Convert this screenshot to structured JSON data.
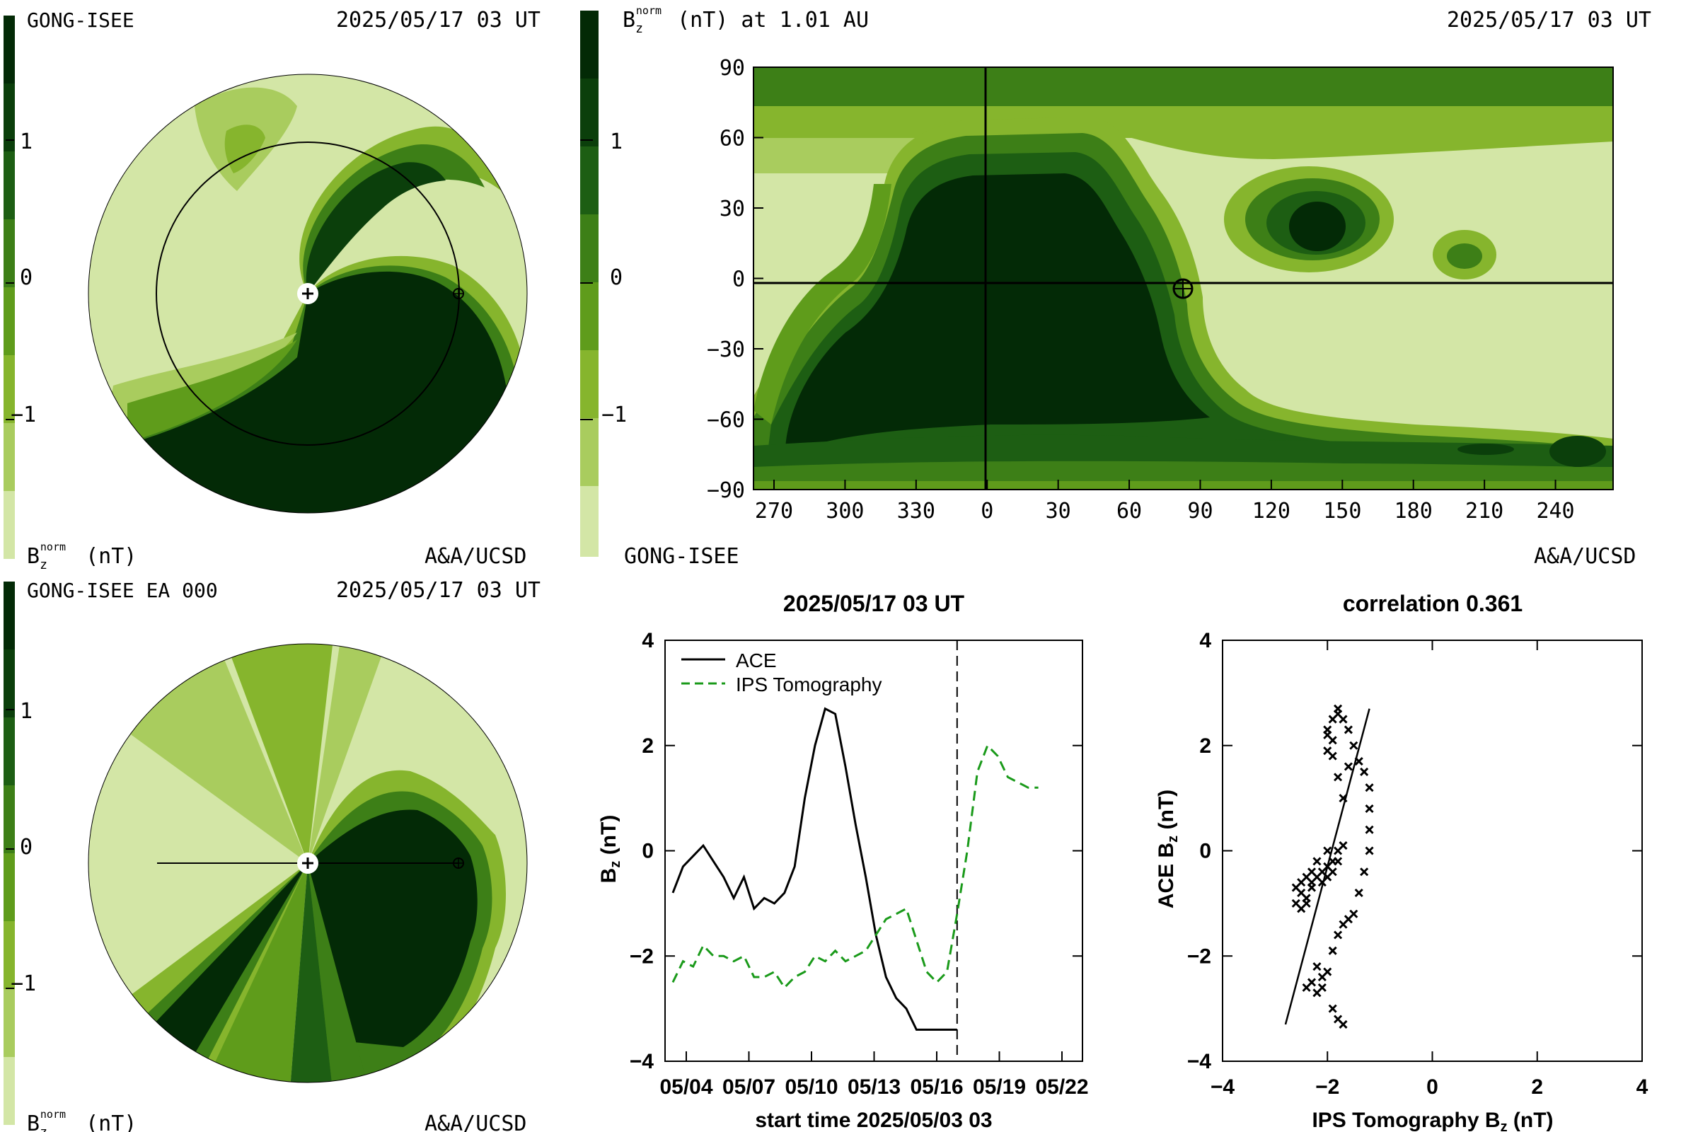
{
  "colors": {
    "levels": [
      "#d3e6a6",
      "#a9cc5e",
      "#86b52d",
      "#5f9c1b",
      "#3d7f17",
      "#1d5e13",
      "#0b3f0b",
      "#032a06"
    ],
    "ace_line": "#000000",
    "ips_line": "#1a9a1a",
    "axis": "#000000"
  },
  "panel_tl": {
    "source": "GONG-ISEE",
    "date": "2025/05/17 03 UT",
    "cb_label_main": "B",
    "cb_label_sub": "z",
    "cb_label_sup": "norm",
    "cb_label_unit": "(nT)",
    "credit": "A&A/UCSD",
    "cb_ticks": [
      "1",
      "0",
      "−1"
    ]
  },
  "panel_bl": {
    "source": "GONG-ISEE EA 000",
    "date": "2025/05/17 03 UT",
    "cb_label_main": "B",
    "cb_label_sub": "z",
    "cb_label_sup": "norm",
    "cb_label_unit": "(nT)",
    "credit": "A&A/UCSD",
    "cb_ticks": [
      "1",
      "0",
      "−1"
    ]
  },
  "panel_map": {
    "title_main": "B",
    "title_sub": "z",
    "title_sup": "norm",
    "title_rest": " (nT) at 1.01 AU",
    "date": "2025/05/17 03 UT",
    "source": "GONG-ISEE",
    "credit": "A&A/UCSD",
    "cb_ticks": [
      "1",
      "0",
      "−1"
    ],
    "y_ticks": [
      "90",
      "60",
      "30",
      "0",
      "−30",
      "−60",
      "−90"
    ],
    "x_ticks": [
      "270",
      "300",
      "330",
      "0",
      "30",
      "60",
      "90",
      "120",
      "150",
      "180",
      "210",
      "240"
    ]
  },
  "chart_data": [
    {
      "type": "line",
      "title": "2025/05/17 03 UT",
      "xlabel": "start time 2025/05/03 03",
      "ylabel": "B_z (nT)",
      "ylim": [
        -4,
        4
      ],
      "x_tick_labels": [
        "05/04",
        "05/07",
        "05/10",
        "05/13",
        "05/16",
        "05/19",
        "05/22"
      ],
      "y_tick_labels": [
        "4",
        "2",
        "0",
        "−2",
        "−4"
      ],
      "x_unit": "days since start",
      "xlim": [
        0,
        20
      ],
      "current_time_marker": 14.0,
      "series": [
        {
          "name": "ACE",
          "style": "solid",
          "x": [
            0,
            0.5,
            1.0,
            1.5,
            2.0,
            2.5,
            3.0,
            3.5,
            4.0,
            4.5,
            5.0,
            5.5,
            6.0,
            6.5,
            7.0,
            7.5,
            8.0,
            8.5,
            9.0,
            9.5,
            10.0,
            10.5,
            11.0,
            11.5,
            12.0,
            12.5,
            13.0,
            13.5,
            14.0
          ],
          "y": [
            -0.8,
            -0.3,
            -0.1,
            0.1,
            -0.2,
            -0.5,
            -0.9,
            -0.5,
            -1.1,
            -0.9,
            -1.0,
            -0.8,
            -0.3,
            1.0,
            2.0,
            2.7,
            2.6,
            1.6,
            0.5,
            -0.5,
            -1.6,
            -2.4,
            -2.8,
            -3.0,
            -3.4,
            -3.4,
            -3.4,
            -3.4,
            -3.4
          ]
        },
        {
          "name": "IPS Tomography",
          "style": "dashed",
          "x": [
            0,
            0.5,
            1.0,
            1.5,
            2.0,
            2.5,
            3.0,
            3.5,
            4.0,
            4.5,
            5.0,
            5.5,
            6.0,
            6.5,
            7.0,
            7.5,
            8.0,
            8.5,
            9.0,
            9.5,
            10.0,
            10.5,
            11.0,
            11.5,
            12.0,
            12.5,
            13.0,
            13.5,
            14.0,
            14.5,
            15.0,
            15.5,
            16.0,
            16.5,
            17.0,
            17.5,
            18.0
          ],
          "y": [
            -2.5,
            -2.1,
            -2.2,
            -1.8,
            -2.0,
            -2.0,
            -2.1,
            -2.0,
            -2.4,
            -2.4,
            -2.3,
            -2.6,
            -2.4,
            -2.3,
            -2.0,
            -2.1,
            -1.9,
            -2.1,
            -2.0,
            -1.9,
            -1.6,
            -1.3,
            -1.2,
            -1.1,
            -1.7,
            -2.3,
            -2.5,
            -2.3,
            -1.2,
            0.0,
            1.5,
            2.0,
            1.8,
            1.4,
            1.3,
            1.2,
            1.2
          ]
        }
      ]
    },
    {
      "type": "scatter",
      "title": "correlation 0.361",
      "xlabel": "IPS Tomography B_z (nT)",
      "ylabel": "ACE B_z (nT)",
      "xlim": [
        -4,
        4
      ],
      "ylim": [
        -4,
        4
      ],
      "x_tick_labels": [
        "−4",
        "−2",
        "0",
        "2",
        "4"
      ],
      "y_tick_labels": [
        "4",
        "2",
        "0",
        "−2",
        "−4"
      ],
      "fit_line": {
        "x": [
          -2.8,
          -1.2
        ],
        "y": [
          -3.3,
          2.7
        ]
      },
      "points": [
        [
          -2.6,
          -0.7
        ],
        [
          -2.5,
          -0.8
        ],
        [
          -2.4,
          -0.9
        ],
        [
          -2.3,
          -0.6
        ],
        [
          -2.2,
          -0.5
        ],
        [
          -2.1,
          -0.4
        ],
        [
          -2.0,
          -0.3
        ],
        [
          -1.9,
          -0.2
        ],
        [
          -1.8,
          0.0
        ],
        [
          -2.0,
          0.0
        ],
        [
          -2.2,
          -0.2
        ],
        [
          -2.3,
          -0.4
        ],
        [
          -2.4,
          -0.5
        ],
        [
          -2.5,
          -0.6
        ],
        [
          -2.6,
          -1.0
        ],
        [
          -2.5,
          -1.1
        ],
        [
          -2.4,
          -1.0
        ],
        [
          -2.3,
          -0.7
        ],
        [
          -2.1,
          -0.6
        ],
        [
          -2.0,
          -0.5
        ],
        [
          -1.9,
          -0.4
        ],
        [
          -1.8,
          -0.2
        ],
        [
          -1.7,
          0.1
        ],
        [
          -2.0,
          2.3
        ],
        [
          -1.9,
          2.5
        ],
        [
          -1.8,
          2.6
        ],
        [
          -1.7,
          2.5
        ],
        [
          -1.6,
          2.3
        ],
        [
          -1.5,
          2.0
        ],
        [
          -1.4,
          1.7
        ],
        [
          -1.3,
          1.5
        ],
        [
          -1.2,
          1.2
        ],
        [
          -1.2,
          0.8
        ],
        [
          -1.2,
          0.4
        ],
        [
          -1.2,
          0.0
        ],
        [
          -1.3,
          -0.4
        ],
        [
          -1.4,
          -0.8
        ],
        [
          -1.5,
          -1.2
        ],
        [
          -1.6,
          -1.3
        ],
        [
          -1.7,
          -1.4
        ],
        [
          -1.8,
          -1.6
        ],
        [
          -1.9,
          -1.9
        ],
        [
          -2.0,
          -2.3
        ],
        [
          -2.1,
          -2.6
        ],
        [
          -2.2,
          -2.7
        ],
        [
          -2.3,
          -2.5
        ],
        [
          -2.4,
          -2.6
        ],
        [
          -2.2,
          -2.2
        ],
        [
          -2.1,
          -2.4
        ],
        [
          -1.9,
          -3.0
        ],
        [
          -1.8,
          -3.2
        ],
        [
          -1.7,
          -3.3
        ],
        [
          -1.9,
          1.8
        ],
        [
          -1.8,
          1.4
        ],
        [
          -1.7,
          1.0
        ],
        [
          -2.0,
          1.9
        ],
        [
          -2.0,
          2.2
        ],
        [
          -1.9,
          2.1
        ],
        [
          -1.8,
          2.7
        ],
        [
          -1.6,
          1.6
        ]
      ]
    }
  ]
}
